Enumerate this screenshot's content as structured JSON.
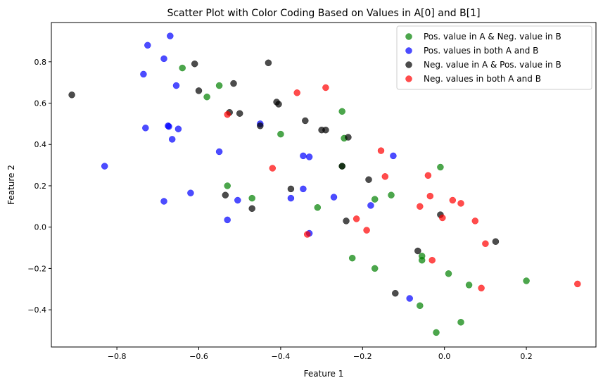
{
  "chart_data": {
    "type": "scatter",
    "title": "Scatter Plot with Color Coding Based on Values in A[0] and B[1]",
    "xlabel": "Feature 1",
    "ylabel": "Feature 2",
    "xlim": [
      -0.96,
      0.37
    ],
    "ylim": [
      -0.58,
      0.99
    ],
    "xticks": [
      -0.8,
      -0.6,
      -0.4,
      -0.2,
      0.0,
      0.2
    ],
    "xtick_labels": [
      "−0.8",
      "−0.6",
      "−0.4",
      "−0.2",
      "0.0",
      "0.2"
    ],
    "yticks": [
      -0.4,
      -0.2,
      0.0,
      0.2,
      0.4,
      0.6,
      0.8
    ],
    "ytick_labels": [
      "−0.4",
      "−0.2",
      "0.0",
      "0.2",
      "0.4",
      "0.6",
      "0.8"
    ],
    "grid": false,
    "legend_position": "top-right",
    "series": [
      {
        "name": "Pos. value in A & Neg. value in B",
        "color": "#008000",
        "opacity": 0.7,
        "points": [
          [
            -0.64,
            0.77
          ],
          [
            -0.58,
            0.63
          ],
          [
            -0.55,
            0.685
          ],
          [
            -0.53,
            0.2
          ],
          [
            -0.47,
            0.14
          ],
          [
            -0.4,
            0.45
          ],
          [
            -0.31,
            0.095
          ],
          [
            -0.25,
            0.56
          ],
          [
            -0.245,
            0.43
          ],
          [
            -0.25,
            0.295
          ],
          [
            -0.225,
            -0.15
          ],
          [
            -0.17,
            0.135
          ],
          [
            -0.17,
            -0.2
          ],
          [
            -0.13,
            0.155
          ],
          [
            -0.055,
            -0.14
          ],
          [
            -0.055,
            -0.16
          ],
          [
            -0.06,
            -0.38
          ],
          [
            -0.01,
            0.29
          ],
          [
            0.01,
            -0.225
          ],
          [
            -0.02,
            -0.51
          ],
          [
            0.04,
            -0.46
          ],
          [
            0.06,
            -0.28
          ],
          [
            0.2,
            -0.26
          ]
        ]
      },
      {
        "name": "Pos. values in both A and B",
        "color": "#0000ff",
        "opacity": 0.7,
        "points": [
          [
            -0.67,
            0.925
          ],
          [
            -0.725,
            0.88
          ],
          [
            -0.685,
            0.815
          ],
          [
            -0.735,
            0.74
          ],
          [
            -0.655,
            0.685
          ],
          [
            -0.73,
            0.48
          ],
          [
            -0.675,
            0.49
          ],
          [
            -0.673,
            0.487
          ],
          [
            -0.65,
            0.475
          ],
          [
            -0.665,
            0.425
          ],
          [
            -0.83,
            0.295
          ],
          [
            -0.55,
            0.365
          ],
          [
            -0.45,
            0.5
          ],
          [
            -0.62,
            0.165
          ],
          [
            -0.685,
            0.125
          ],
          [
            -0.53,
            0.035
          ],
          [
            -0.505,
            0.13
          ],
          [
            -0.345,
            0.345
          ],
          [
            -0.33,
            0.34
          ],
          [
            -0.375,
            0.14
          ],
          [
            -0.345,
            0.185
          ],
          [
            -0.33,
            -0.03
          ],
          [
            -0.27,
            0.145
          ],
          [
            -0.125,
            0.345
          ],
          [
            -0.18,
            0.105
          ],
          [
            -0.085,
            -0.345
          ]
        ]
      },
      {
        "name": "Neg. value in A & Pos. value in B",
        "color": "#000000",
        "opacity": 0.7,
        "points": [
          [
            -0.91,
            0.64
          ],
          [
            -0.61,
            0.79
          ],
          [
            -0.6,
            0.66
          ],
          [
            -0.515,
            0.695
          ],
          [
            -0.525,
            0.555
          ],
          [
            -0.5,
            0.55
          ],
          [
            -0.43,
            0.795
          ],
          [
            -0.41,
            0.605
          ],
          [
            -0.405,
            0.595
          ],
          [
            -0.45,
            0.49
          ],
          [
            -0.34,
            0.515
          ],
          [
            -0.3,
            0.47
          ],
          [
            -0.29,
            0.47
          ],
          [
            -0.235,
            0.435
          ],
          [
            -0.25,
            0.295
          ],
          [
            -0.535,
            0.155
          ],
          [
            -0.47,
            0.09
          ],
          [
            -0.375,
            0.185
          ],
          [
            -0.24,
            0.03
          ],
          [
            -0.185,
            0.23
          ],
          [
            -0.065,
            -0.115
          ],
          [
            -0.12,
            -0.32
          ],
          [
            -0.01,
            0.06
          ],
          [
            0.125,
            -0.07
          ]
        ]
      },
      {
        "name": "Neg. values in both A and B",
        "color": "#ff0000",
        "opacity": 0.7,
        "points": [
          [
            -0.53,
            0.545
          ],
          [
            -0.36,
            0.65
          ],
          [
            -0.29,
            0.675
          ],
          [
            -0.42,
            0.285
          ],
          [
            -0.335,
            -0.035
          ],
          [
            -0.155,
            0.37
          ],
          [
            -0.145,
            0.245
          ],
          [
            -0.215,
            0.04
          ],
          [
            -0.19,
            -0.015
          ],
          [
            -0.04,
            0.25
          ],
          [
            -0.035,
            0.15
          ],
          [
            -0.06,
            0.1
          ],
          [
            -0.005,
            0.045
          ],
          [
            0.02,
            0.13
          ],
          [
            0.04,
            0.115
          ],
          [
            -0.03,
            -0.16
          ],
          [
            0.075,
            0.03
          ],
          [
            0.1,
            -0.08
          ],
          [
            0.09,
            -0.295
          ],
          [
            0.325,
            -0.275
          ]
        ]
      }
    ]
  }
}
